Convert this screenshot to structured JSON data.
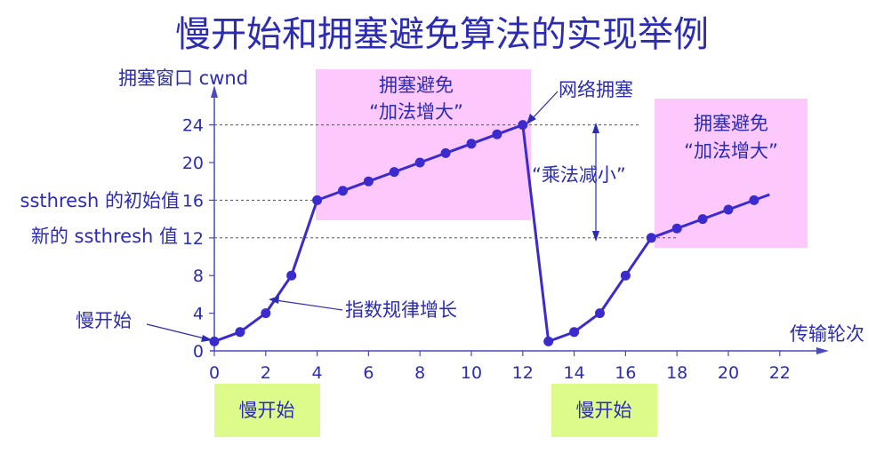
{
  "title": "慢开始和拥塞避免算法的实现举例",
  "ylabel": "拥塞窗口 cwnd",
  "xlabel": "传输轮次",
  "colors": {
    "text": "#2b2bb4",
    "line": "#3b2bcf",
    "axis": "#4a4ab8",
    "pink": "#fdc8fb",
    "green": "#dcfb8a"
  },
  "annotations": {
    "ca1_line1": "拥塞避免",
    "ca1_line2": "“加法增大”",
    "ca2_line1": "拥塞避免",
    "ca2_line2": "“加法增大”",
    "congestion": "网络拥塞",
    "mult_decrease": "“乘法减小”",
    "ssthresh_init": "ssthresh 的初始值",
    "ssthresh_new": "新的 ssthresh 值",
    "slowstart_left": "慢开始",
    "exp_growth": "指数规律增长",
    "slowstart_box1": "慢开始",
    "slowstart_box2": "慢开始"
  },
  "chart_data": {
    "type": "line",
    "x_ticks": [
      0,
      2,
      4,
      6,
      8,
      10,
      12,
      14,
      16,
      18,
      20,
      22
    ],
    "y_ticks": [
      0,
      4,
      8,
      12,
      16,
      20,
      24
    ],
    "xlim": [
      0,
      24
    ],
    "ylim": [
      0,
      26
    ],
    "series": [
      {
        "x": [
          0,
          1,
          2,
          3,
          4,
          5,
          6,
          7,
          8,
          9,
          10,
          11,
          12,
          13,
          14,
          15,
          16,
          17,
          18,
          19,
          20,
          21
        ],
        "y": [
          1,
          2,
          4,
          8,
          16,
          17,
          18,
          19,
          20,
          21,
          22,
          23,
          24,
          1,
          2,
          4,
          8,
          12,
          13,
          14,
          15,
          16
        ]
      }
    ],
    "ssthresh_lines": [
      16,
      12,
      24
    ]
  }
}
